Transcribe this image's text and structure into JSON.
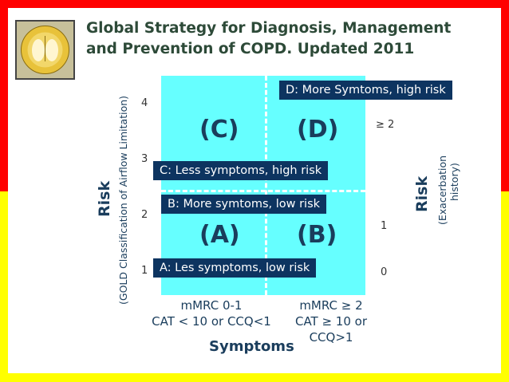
{
  "title": {
    "line1": "Global Strategy for Diagnosis, Management",
    "line2": "and Prevention of COPD. Updated 2011"
  },
  "logo": {
    "text": "GLOBAL INITIATIVE FOR CHRONIC OBSTRUCTIVE LUNG DISEASE"
  },
  "quadrants": {
    "a": "(A)",
    "b": "(B)",
    "c": "(C)",
    "d": "(D)"
  },
  "labels": {
    "a": "A:  Les symptoms, low risk",
    "b": "B:  More symtoms, low risk",
    "c": "C:  Less symptoms, high risk",
    "d": "D:  More Symtoms, high risk"
  },
  "left_axis": {
    "title": "Risk",
    "subtitle": "(GOLD Classification of Airflow Limitation)",
    "ticks": [
      "4",
      "3",
      "2",
      "1"
    ]
  },
  "right_axis": {
    "title": "Risk",
    "subtitle_line1": "(Exacerbation",
    "subtitle_line2": "history)",
    "ticks": [
      "≥ 2",
      "1",
      "0"
    ]
  },
  "x_axis": {
    "title": "Symptoms",
    "col1_line1": "mMRC 0-1",
    "col1_line2": "CAT < 10 or CCQ<1",
    "col2_line1": "mMRC ≥ 2",
    "col2_line2": "CAT ≥ 10 or",
    "col2_line3": "CCQ>1"
  },
  "colors": {
    "quadrant_fill": "#66ffff",
    "label_box": "#0d3460",
    "border_top": "#ff0000",
    "border_bottom": "#ffff00"
  }
}
